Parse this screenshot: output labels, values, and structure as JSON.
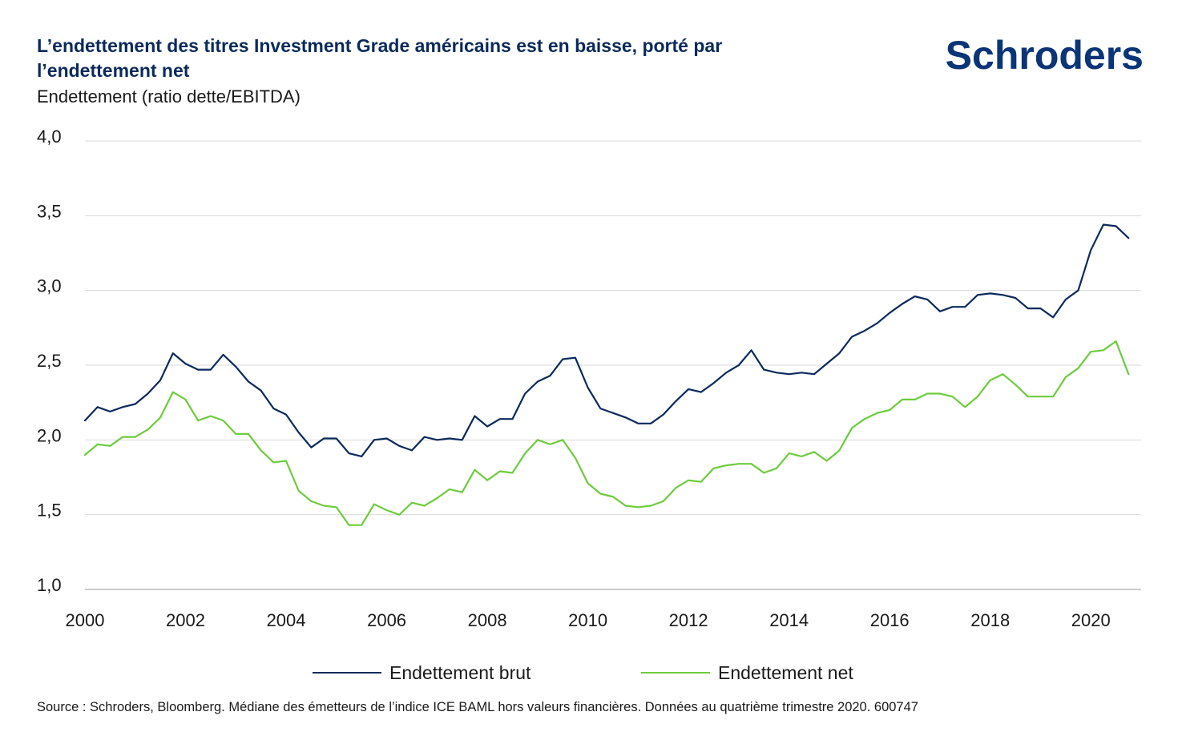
{
  "header": {
    "title": "L’endettement des titres Investment Grade américains est en baisse, porté par l’endettement net",
    "subtitle": "Endettement (ratio dette/EBITDA)",
    "logo_text": "Schroders"
  },
  "footer": {
    "source": "Source : Schroders, Bloomberg. Médiane des émetteurs de l’indice ICE BAML hors valeurs financières. Données au quatrième trimestre 2020. 600747"
  },
  "colors": {
    "gross": "#0b2a5c",
    "net": "#6dcc3c",
    "grid": "#d9d9d9",
    "axis": "#999999"
  },
  "chart_data": {
    "type": "line",
    "title": "L’endettement des titres Investment Grade américains est en baisse, porté par l’endettement net",
    "ylabel": "Endettement (ratio dette/EBITDA)",
    "xlabel": "",
    "ylim": [
      1.0,
      4.0
    ],
    "xlim": [
      2000,
      2021
    ],
    "yticks": [
      "1,0",
      "1,5",
      "2,0",
      "2,5",
      "3,0",
      "3,5",
      "4,0"
    ],
    "ytick_values": [
      1.0,
      1.5,
      2.0,
      2.5,
      3.0,
      3.5,
      4.0
    ],
    "xticks": [
      "2000",
      "2002",
      "2004",
      "2006",
      "2008",
      "2010",
      "2012",
      "2014",
      "2016",
      "2018",
      "2020"
    ],
    "xtick_values": [
      2000,
      2002,
      2004,
      2006,
      2008,
      2010,
      2012,
      2014,
      2016,
      2018,
      2020
    ],
    "grid": true,
    "legend_position": "bottom",
    "x_start": 2000,
    "x_step": 0.25,
    "series": [
      {
        "name": "Endettement brut",
        "color": "#0b2a5c",
        "values": [
          2.13,
          2.22,
          2.19,
          2.22,
          2.24,
          2.31,
          2.4,
          2.58,
          2.51,
          2.47,
          2.47,
          2.57,
          2.49,
          2.39,
          2.33,
          2.21,
          2.17,
          2.05,
          1.95,
          2.01,
          2.01,
          1.91,
          1.89,
          2.0,
          2.01,
          1.96,
          1.93,
          2.02,
          2.0,
          2.01,
          2.0,
          2.16,
          2.09,
          2.14,
          2.14,
          2.31,
          2.39,
          2.43,
          2.54,
          2.55,
          2.35,
          2.21,
          2.18,
          2.15,
          2.11,
          2.11,
          2.17,
          2.26,
          2.34,
          2.32,
          2.38,
          2.45,
          2.5,
          2.6,
          2.47,
          2.45,
          2.44,
          2.45,
          2.44,
          2.51,
          2.58,
          2.69,
          2.73,
          2.78,
          2.85,
          2.91,
          2.96,
          2.94,
          2.86,
          2.89,
          2.89,
          2.97,
          2.98,
          2.97,
          2.95,
          2.88,
          2.88,
          2.82,
          2.94,
          3.0,
          3.27,
          3.44,
          3.43,
          3.35
        ]
      },
      {
        "name": "Endettement net",
        "color": "#6dcc3c",
        "values": [
          1.9,
          1.97,
          1.96,
          2.02,
          2.02,
          2.07,
          2.15,
          2.32,
          2.27,
          2.13,
          2.16,
          2.13,
          2.04,
          2.04,
          1.93,
          1.85,
          1.86,
          1.66,
          1.59,
          1.56,
          1.55,
          1.43,
          1.43,
          1.57,
          1.53,
          1.5,
          1.58,
          1.56,
          1.61,
          1.67,
          1.65,
          1.8,
          1.73,
          1.79,
          1.78,
          1.91,
          2.0,
          1.97,
          2.0,
          1.88,
          1.71,
          1.64,
          1.62,
          1.56,
          1.55,
          1.56,
          1.59,
          1.68,
          1.73,
          1.72,
          1.81,
          1.83,
          1.84,
          1.84,
          1.78,
          1.81,
          1.91,
          1.89,
          1.92,
          1.86,
          1.93,
          2.08,
          2.14,
          2.18,
          2.2,
          2.27,
          2.27,
          2.31,
          2.31,
          2.29,
          2.22,
          2.29,
          2.4,
          2.44,
          2.37,
          2.29,
          2.29,
          2.29,
          2.42,
          2.48,
          2.59,
          2.6,
          2.66,
          2.44
        ]
      }
    ]
  }
}
